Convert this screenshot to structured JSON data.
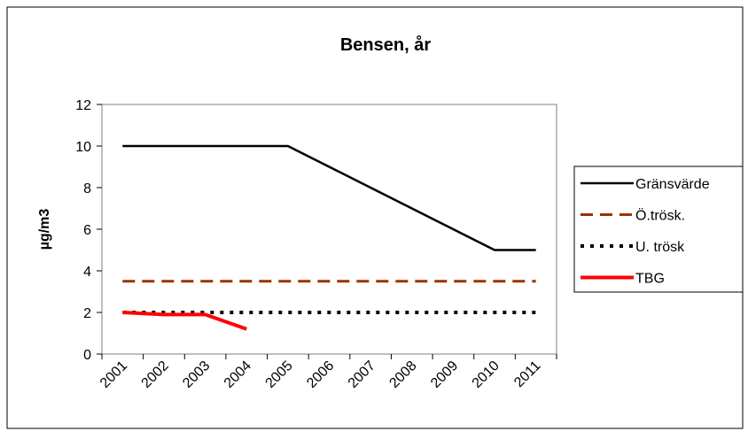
{
  "chart_data": {
    "type": "line",
    "title": "Bensen, år",
    "y_label": "µg/m3",
    "categories": [
      "2001",
      "2002",
      "2003",
      "2004",
      "2005",
      "2006",
      "2007",
      "2008",
      "2009",
      "2010",
      "2011"
    ],
    "series": [
      {
        "name": "Gränsvärde",
        "color": "#000000",
        "dash": "solid",
        "values": [
          10,
          10,
          10,
          10,
          10,
          9,
          8,
          7,
          6,
          5,
          5
        ]
      },
      {
        "name": "Ö.trösk.",
        "color": "#993300",
        "dash": "dashed",
        "values": [
          3.5,
          3.5,
          3.5,
          3.5,
          3.5,
          3.5,
          3.5,
          3.5,
          3.5,
          3.5,
          3.5
        ]
      },
      {
        "name": "U. trösk",
        "color": "#000000",
        "dash": "dotted",
        "values": [
          2,
          2,
          2,
          2,
          2,
          2,
          2,
          2,
          2,
          2,
          2
        ]
      },
      {
        "name": "TBG",
        "color": "#ff0000",
        "dash": "solid",
        "values": [
          2,
          1.9,
          1.9,
          1.2,
          null,
          null,
          null,
          null,
          null,
          null,
          null
        ]
      }
    ],
    "ylim": [
      0,
      12
    ],
    "yticks": [
      0,
      2,
      4,
      6,
      8,
      10,
      12
    ],
    "grid": false,
    "legend": "right"
  }
}
